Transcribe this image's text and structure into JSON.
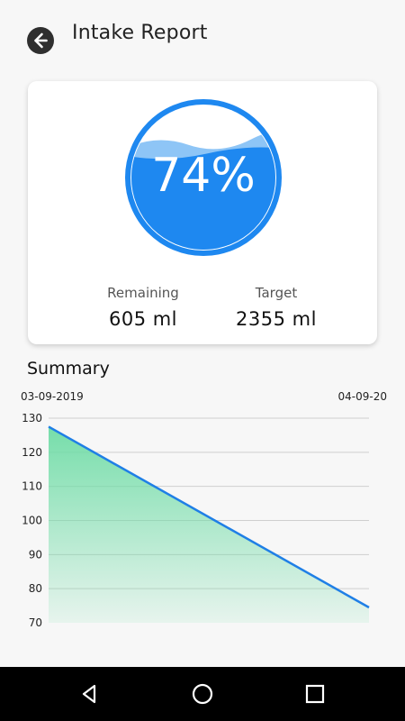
{
  "header": {
    "title": "Intake Report",
    "back_icon": "arrow-left-icon"
  },
  "progress": {
    "percent_label": "74%",
    "fill_fraction": 0.74,
    "color": "#1e88f0",
    "wave_color": "#8ec5f6"
  },
  "stats": {
    "remaining_label": "Remaining",
    "remaining_value": "605 ml",
    "target_label": "Target",
    "target_value": "2355 ml"
  },
  "summary": {
    "title": "Summary",
    "date_start": "03-09-2019",
    "date_end": "04-09-20"
  },
  "chart_data": {
    "type": "area",
    "x": [
      "03-09-2019",
      "04-09-20"
    ],
    "values": [
      127.5,
      74.5
    ],
    "ylim": [
      70,
      130
    ],
    "y_ticks": [
      70,
      80,
      90,
      100,
      110,
      120,
      130
    ],
    "grid": true,
    "line_color": "#1f7fe6",
    "fill_color": "#6fdca6"
  },
  "navbar": {
    "back_icon": "nav-back-icon",
    "home_icon": "nav-home-icon",
    "recents_icon": "nav-recents-icon"
  }
}
